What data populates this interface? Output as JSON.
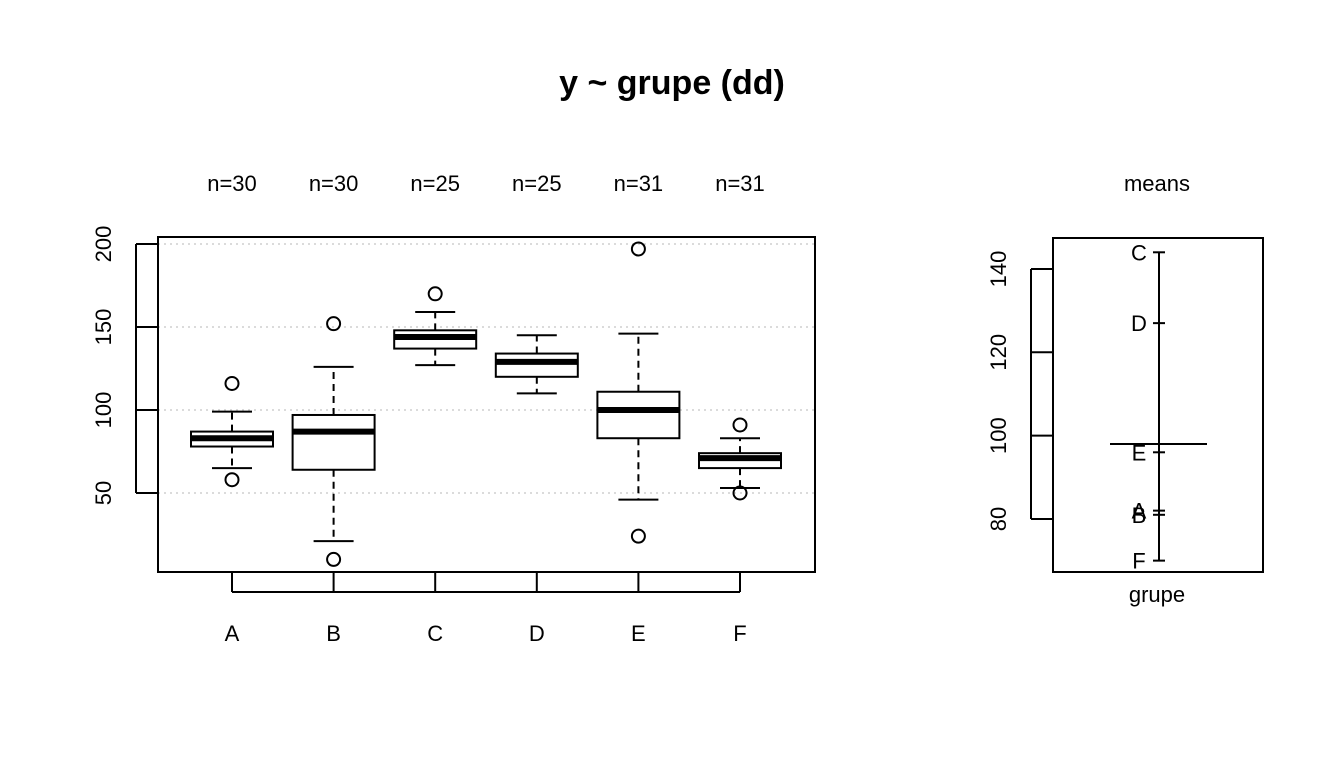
{
  "chart_data": [
    {
      "type": "boxplot",
      "title": "y ~ grupe (dd)",
      "ylim": [
        1,
        200
      ],
      "yticks": [
        50,
        100,
        150,
        200
      ],
      "grid": "horizontal dotted",
      "categories": [
        "A",
        "B",
        "C",
        "D",
        "E",
        "F"
      ],
      "counts": [
        "n=30",
        "n=30",
        "n=25",
        "n=25",
        "n=31",
        "n=31"
      ],
      "boxes": [
        {
          "group": "A",
          "whisker_low": 65,
          "q1": 78,
          "median": 83,
          "q3": 87,
          "whisker_high": 99,
          "outliers": [
            116,
            58
          ]
        },
        {
          "group": "B",
          "whisker_low": 21,
          "q1": 64,
          "median": 87,
          "q3": 97,
          "whisker_high": 126,
          "outliers": [
            152,
            10
          ]
        },
        {
          "group": "C",
          "whisker_low": 127,
          "q1": 137,
          "median": 144,
          "q3": 148,
          "whisker_high": 159,
          "outliers": [
            170
          ]
        },
        {
          "group": "D",
          "whisker_low": 110,
          "q1": 120,
          "median": 129,
          "q3": 134,
          "whisker_high": 145,
          "outliers": []
        },
        {
          "group": "E",
          "whisker_low": 46,
          "q1": 83,
          "median": 100,
          "q3": 111,
          "whisker_high": 146,
          "outliers": [
            197,
            24
          ]
        },
        {
          "group": "F",
          "whisker_low": 53,
          "q1": 65,
          "median": 71,
          "q3": 74,
          "whisker_high": 83,
          "outliers": [
            91,
            50
          ]
        }
      ]
    },
    {
      "type": "means",
      "title": "means",
      "xlabel": "grupe",
      "ylim": [
        68,
        146
      ],
      "yticks": [
        80,
        100,
        120,
        140
      ],
      "grand_mean": 98,
      "points": [
        {
          "label": "C",
          "value": 144
        },
        {
          "label": "D",
          "value": 127
        },
        {
          "label": "E",
          "value": 96
        },
        {
          "label": "A",
          "value": 82
        },
        {
          "label": "B",
          "value": 81
        },
        {
          "label": "F",
          "value": 70
        }
      ]
    }
  ]
}
